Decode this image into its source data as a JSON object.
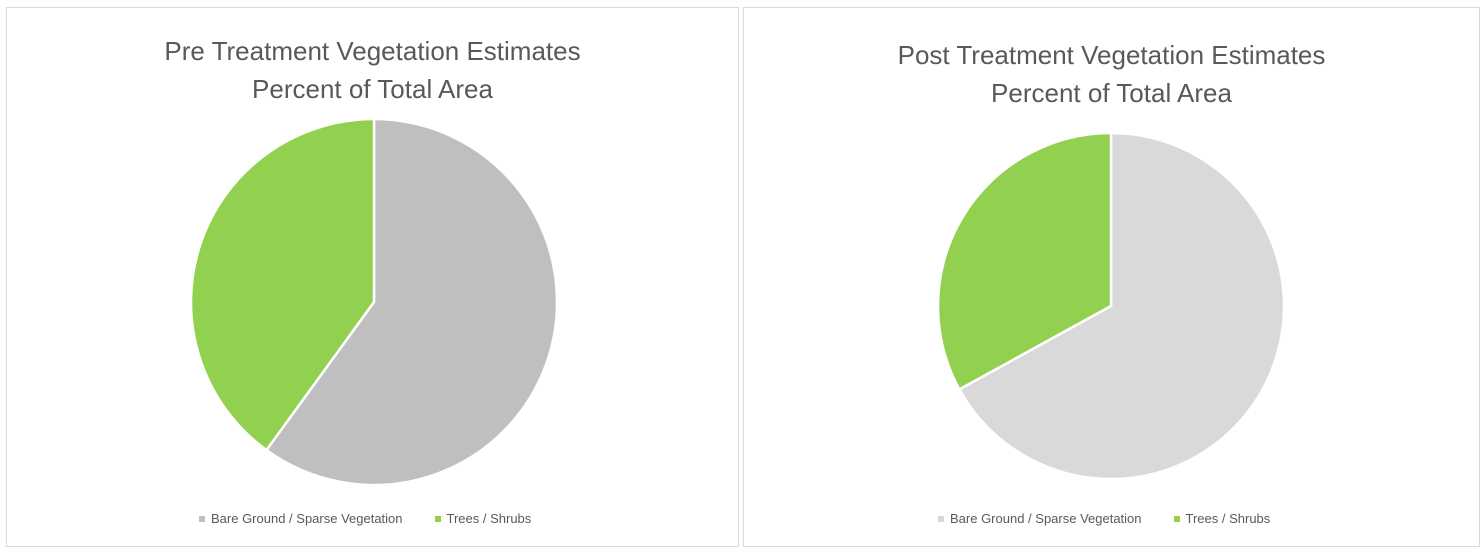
{
  "chart_data": [
    {
      "type": "pie",
      "title_lines": [
        "Pre Treatment Vegetation Estimates",
        "Percent of Total Area"
      ],
      "slices": [
        {
          "label": "Bare Ground / Sparse Vegetation",
          "value": 60,
          "color": "#bfbfbf"
        },
        {
          "label": "Trees / Shrubs",
          "value": 40,
          "color": "#92d050"
        }
      ],
      "legend_position": "bottom"
    },
    {
      "type": "pie",
      "title_lines": [
        "Post Treatment Vegetation Estimates",
        "Percent of Total Area"
      ],
      "slices": [
        {
          "label": "Bare Ground / Sparse Vegetation",
          "value": 67,
          "color": "#d9d9d9"
        },
        {
          "label": "Trees / Shrubs",
          "value": 33,
          "color": "#92d050"
        }
      ],
      "legend_position": "bottom"
    }
  ]
}
